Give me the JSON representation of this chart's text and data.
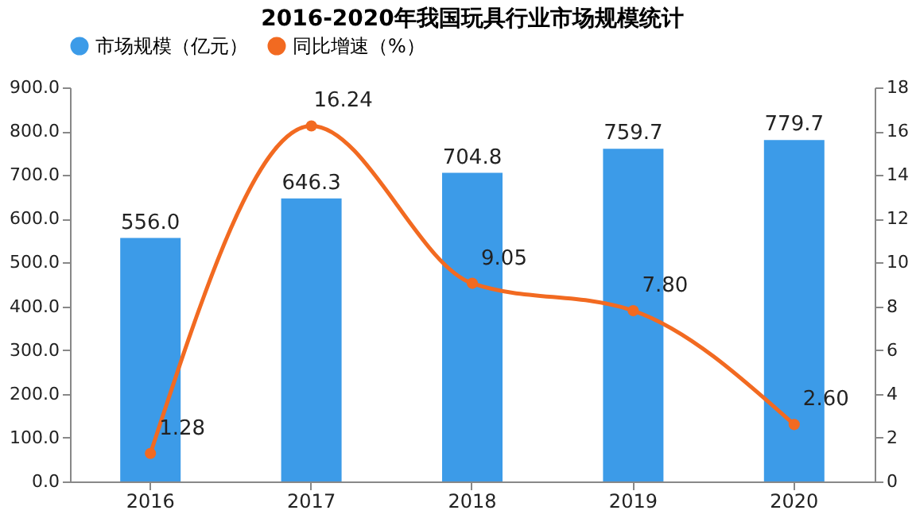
{
  "chart_data": {
    "type": "bar",
    "title": "2016-2020年我国玩具行业市场规模统计",
    "categories": [
      "2016",
      "2017",
      "2018",
      "2019",
      "2020"
    ],
    "series": [
      {
        "name": "市场规模（亿元）",
        "color": "#3c9be8",
        "values": [
          556.0,
          646.3,
          704.8,
          759.7,
          779.7
        ],
        "value_labels": [
          "556.0",
          "646.3",
          "704.8",
          "759.7",
          "779.7"
        ]
      },
      {
        "name": "同比增速（%）",
        "type": "line",
        "axis": "y2",
        "color": "#f26a21",
        "values": [
          1.28,
          16.24,
          9.05,
          7.8,
          2.6
        ],
        "value_labels": [
          "1.28",
          "16.24",
          "9.05",
          "7.80",
          "2.60"
        ]
      }
    ],
    "ylim": [
      0,
      900
    ],
    "yticks": [
      {
        "value": 0,
        "label": "0.0"
      },
      {
        "value": 100,
        "label": "100.0"
      },
      {
        "value": 200,
        "label": "200.0"
      },
      {
        "value": 300,
        "label": "300.0"
      },
      {
        "value": 400,
        "label": "400.0"
      },
      {
        "value": 500,
        "label": "500.0"
      },
      {
        "value": 600,
        "label": "600.0"
      },
      {
        "value": 700,
        "label": "700.0"
      },
      {
        "value": 800,
        "label": "800.0"
      },
      {
        "value": 900,
        "label": "900.0"
      }
    ],
    "y2lim": [
      0,
      18
    ],
    "y2ticks": [
      0,
      2,
      4,
      6,
      8,
      10,
      12,
      14,
      16,
      18
    ],
    "legend": "top",
    "grid": false,
    "marker": "circle",
    "line_style": "solid"
  }
}
